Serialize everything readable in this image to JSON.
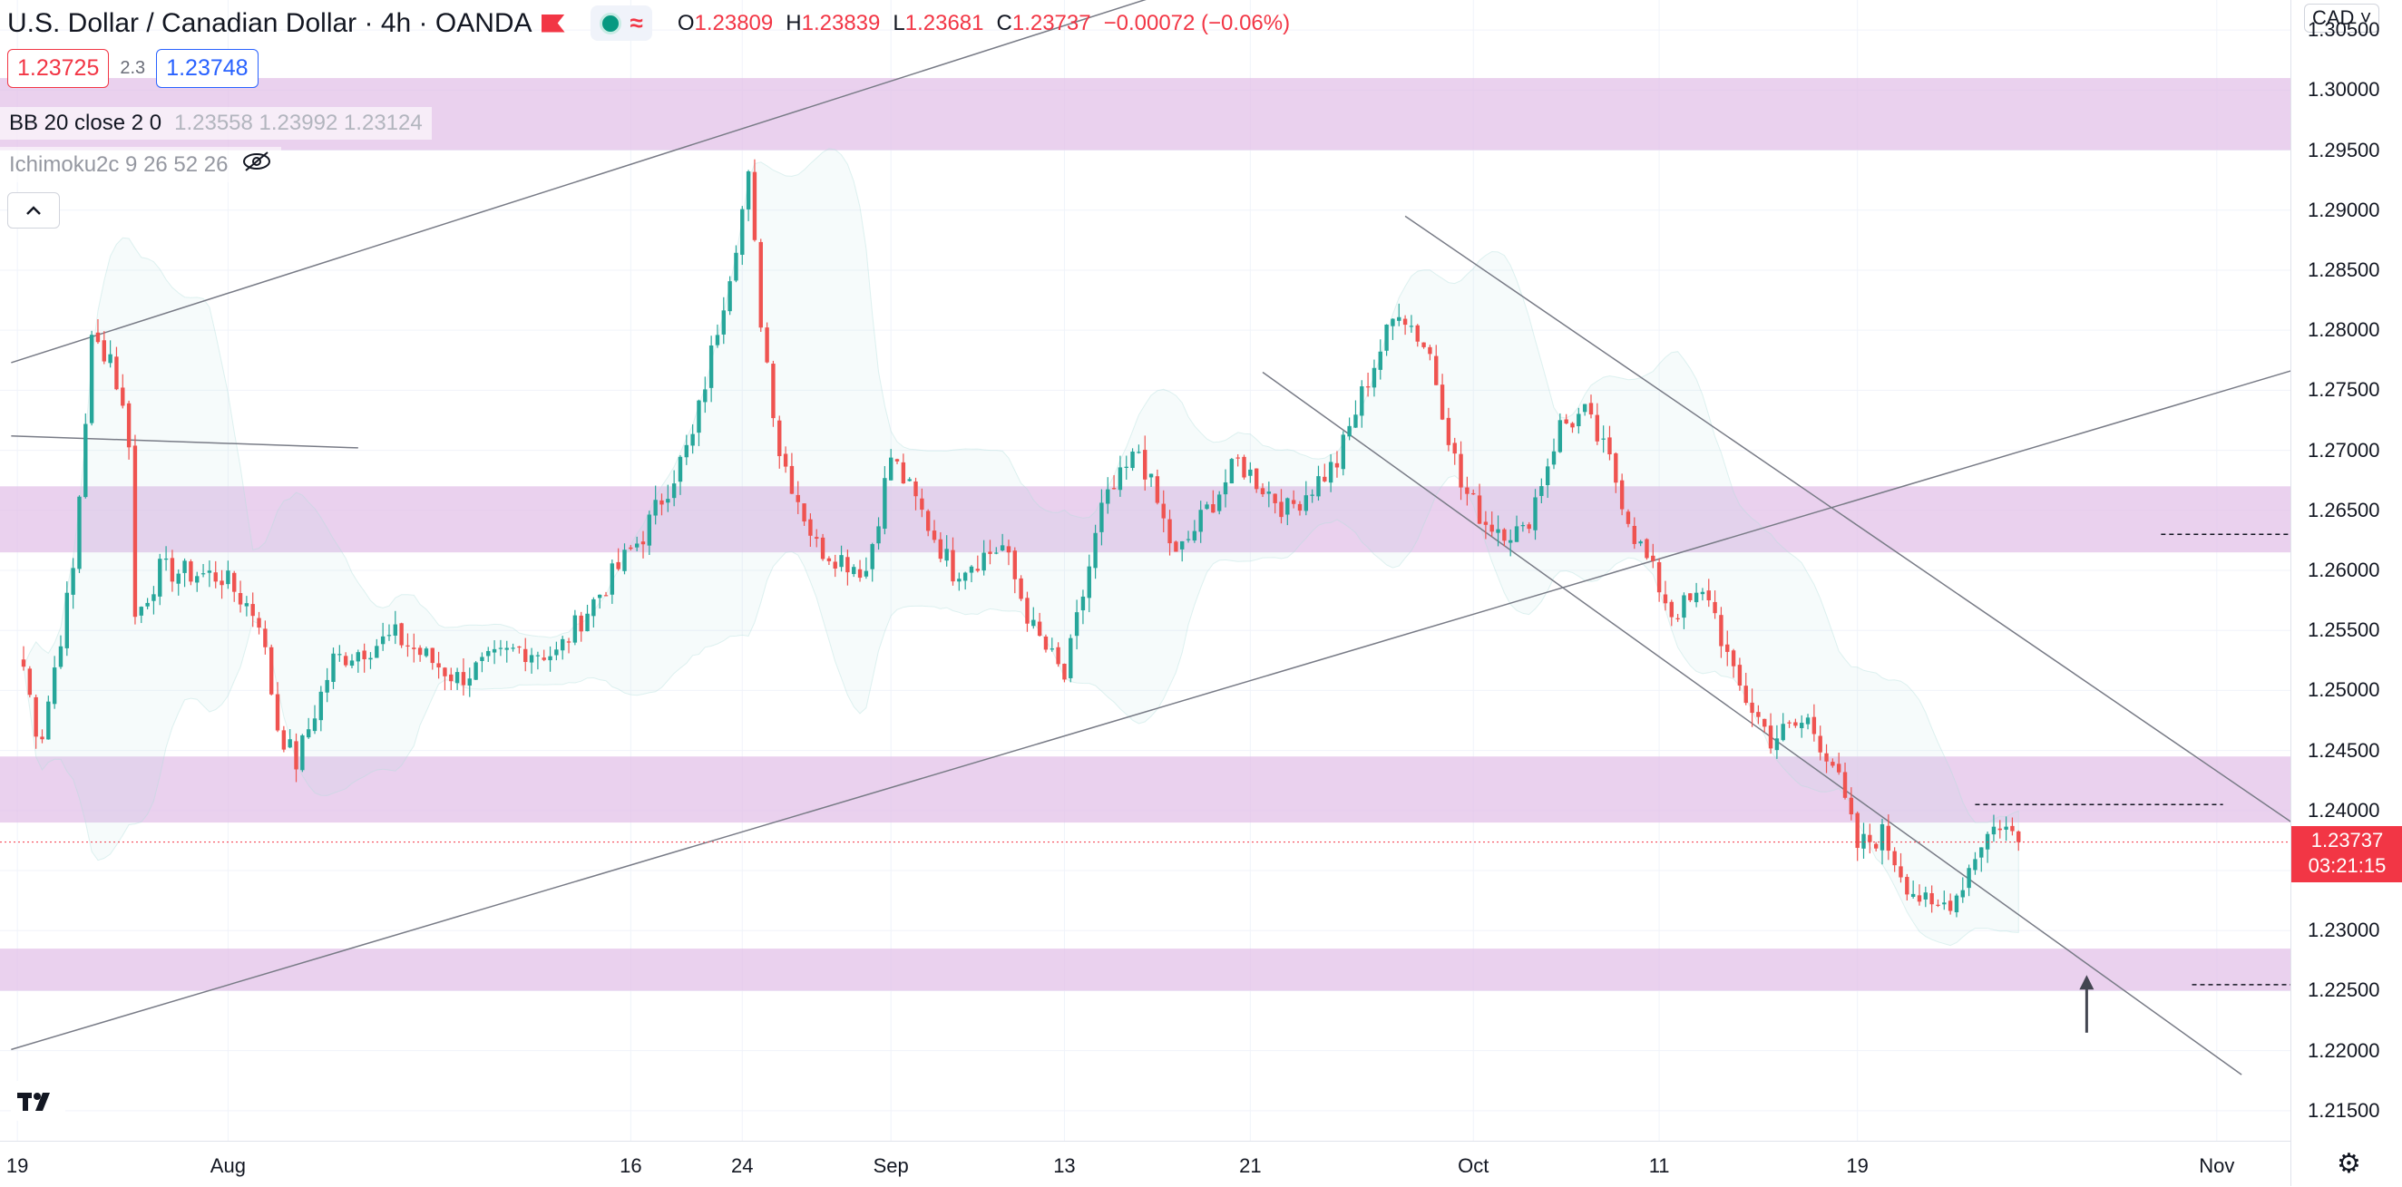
{
  "header": {
    "symbol": "U.S. Dollar / Canadian Dollar · 4h · OANDA",
    "ohlc": [
      {
        "k": "O",
        "v": "1.23809"
      },
      {
        "k": "H",
        "v": "1.23839"
      },
      {
        "k": "L",
        "v": "1.23681"
      },
      {
        "k": "C",
        "v": "1.23737"
      },
      {
        "k": "",
        "v": "−0.00072 (−0.06%)"
      }
    ],
    "bid": "1.23725",
    "spread": "2.3",
    "ask": "1.23748"
  },
  "indicators": {
    "bb": {
      "label": "BB 20 close 2 0",
      "values": "1.23558  1.23992  1.23124"
    },
    "ichimoku": {
      "label": "Ichimoku2c 9 26 52 26"
    }
  },
  "axis": {
    "currency": "CAD",
    "current_price": "1.23737",
    "countdown": "03:21:15"
  },
  "icons": {
    "flag": "flag-icon",
    "status": "market-open-dot-icon",
    "data": "wave-icon",
    "eye": "eye-hidden-icon",
    "collapse": "chevron-up-icon",
    "logo": "tradingview-logo-icon",
    "settings": "gear-icon"
  },
  "colors": {
    "up": "#26a69a",
    "down": "#ef5350",
    "zone": "#e1bee7",
    "bb": "#b2dfdb"
  },
  "chart_data": {
    "type": "candlestick",
    "title": "U.S. Dollar / Canadian Dollar · 4h · OANDA",
    "ylim": [
      1.2125,
      1.3075
    ],
    "y_ticks": [
      "1.30500",
      "1.30000",
      "1.29500",
      "1.29000",
      "1.28500",
      "1.28000",
      "1.27500",
      "1.27000",
      "1.26500",
      "1.26000",
      "1.25500",
      "1.25000",
      "1.24500",
      "1.24000",
      "1.23500",
      "1.23000",
      "1.22500",
      "1.22000",
      "1.21500"
    ],
    "x_ticks": [
      "19",
      "Aug",
      "16",
      "24",
      "Sep",
      "13",
      "21",
      "Oct",
      "11",
      "19",
      "Nov"
    ],
    "anchors": [
      [
        0,
        1.252
      ],
      [
        2,
        1.247
      ],
      [
        3,
        1.2465
      ],
      [
        8,
        1.26
      ],
      [
        11,
        1.279
      ],
      [
        14,
        1.278
      ],
      [
        17,
        1.271
      ],
      [
        18,
        1.256
      ],
      [
        22,
        1.26
      ],
      [
        32,
        1.2595
      ],
      [
        38,
        1.256
      ],
      [
        41,
        1.247
      ],
      [
        44,
        1.244
      ],
      [
        50,
        1.2525
      ],
      [
        60,
        1.2545
      ],
      [
        70,
        1.251
      ],
      [
        80,
        1.2535
      ],
      [
        86,
        1.253
      ],
      [
        90,
        1.256
      ],
      [
        100,
        1.263
      ],
      [
        108,
        1.271
      ],
      [
        114,
        1.285
      ],
      [
        117,
        1.2925
      ],
      [
        119,
        1.281
      ],
      [
        122,
        1.27
      ],
      [
        128,
        1.262
      ],
      [
        136,
        1.26
      ],
      [
        140,
        1.2695
      ],
      [
        150,
        1.26
      ],
      [
        158,
        1.262
      ],
      [
        163,
        1.255
      ],
      [
        168,
        1.251
      ],
      [
        174,
        1.265
      ],
      [
        180,
        1.27
      ],
      [
        186,
        1.261
      ],
      [
        196,
        1.269
      ],
      [
        204,
        1.265
      ],
      [
        212,
        1.269
      ],
      [
        217,
        1.276
      ],
      [
        222,
        1.282
      ],
      [
        227,
        1.278
      ],
      [
        232,
        1.267
      ],
      [
        236,
        1.264
      ],
      [
        242,
        1.263
      ],
      [
        248,
        1.272
      ],
      [
        252,
        1.273
      ],
      [
        256,
        1.269
      ],
      [
        260,
        1.263
      ],
      [
        266,
        1.2565
      ],
      [
        272,
        1.258
      ],
      [
        276,
        1.251
      ],
      [
        282,
        1.246
      ],
      [
        288,
        1.2475
      ],
      [
        292,
        1.244
      ],
      [
        296,
        1.237
      ],
      [
        300,
        1.238
      ],
      [
        304,
        1.234
      ],
      [
        308,
        1.2315
      ],
      [
        312,
        1.233
      ],
      [
        316,
        1.2375
      ],
      [
        319,
        1.239
      ],
      [
        322,
        1.2374
      ]
    ],
    "bars": 323,
    "last_close": 1.23737,
    "zones": [
      [
        1.295,
        1.301
      ],
      [
        1.2615,
        1.267
      ],
      [
        1.239,
        1.2445
      ],
      [
        1.225,
        1.2285
      ]
    ],
    "trendlines": [
      {
        "from": [
          -2,
          1.2773
        ],
        "to": [
          216,
          1.3133
        ]
      },
      {
        "from": [
          -2,
          1.2712
        ],
        "to": [
          54,
          1.2702
        ]
      },
      {
        "from": [
          -2,
          1.2201
        ],
        "to": [
          388,
          1.28
        ]
      },
      {
        "from": [
          200,
          1.2765
        ],
        "to": [
          358,
          1.218
        ]
      },
      {
        "from": [
          223,
          1.2895
        ],
        "to": [
          384,
          1.2327
        ]
      }
    ],
    "dashed_levels": [
      {
        "y": 1.263,
        "from": 345,
        "to": 390
      },
      {
        "y": 1.2405,
        "from": 315,
        "to": 355
      },
      {
        "y": 1.2255,
        "from": 350,
        "to": 392
      }
    ],
    "arrow": {
      "x": 333,
      "from": 1.2215,
      "to": 1.226
    },
    "bb_period": 20,
    "bb_mult": 2
  }
}
